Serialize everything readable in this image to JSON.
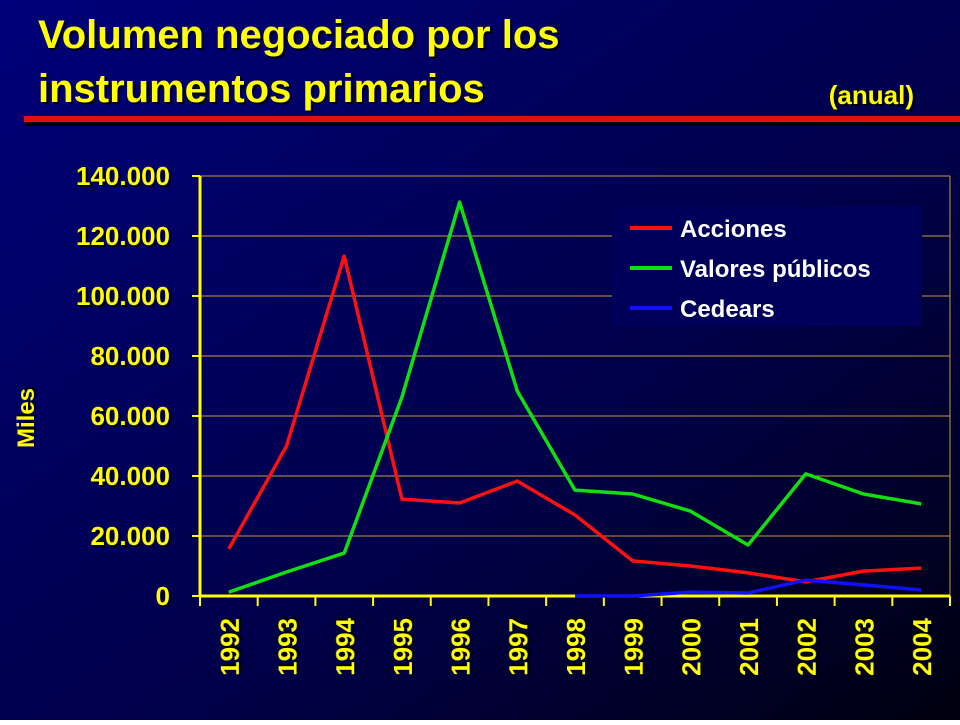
{
  "chart_data": {
    "type": "line",
    "title_lines": [
      "Volumen negociado por los",
      "instrumentos primarios"
    ],
    "subtitle": "(anual)",
    "y_label": "Miles",
    "categories": [
      "1992",
      "1993",
      "1994",
      "1995",
      "1996",
      "1997",
      "1998",
      "1999",
      "2000",
      "2001",
      "2002",
      "2003",
      "2004"
    ],
    "series": [
      {
        "name": "Acciones",
        "color": "#ff1010",
        "values": [
          15700,
          50000,
          113300,
          32300,
          31000,
          38300,
          27000,
          11700,
          10000,
          7700,
          4700,
          8300,
          9300
        ]
      },
      {
        "name": "Valores públicos",
        "color": "#10e010",
        "values": [
          1300,
          8000,
          14300,
          66300,
          131300,
          68300,
          35300,
          34000,
          28300,
          17000,
          40700,
          34000,
          30700
        ]
      },
      {
        "name": "Cedears",
        "color": "#1010ff",
        "values": [
          null,
          null,
          null,
          null,
          null,
          null,
          0,
          0,
          1300,
          1000,
          5300,
          3700,
          2000
        ]
      }
    ],
    "ylim": [
      0,
      140000
    ],
    "yticks": [
      0,
      {
        "value": 20000,
        "label": "20.000"
      },
      {
        "value": 40000,
        "label": "40.000"
      },
      {
        "value": 60000,
        "label": "60.000"
      },
      {
        "value": 80000,
        "label": "80.000"
      },
      {
        "value": 100000,
        "label": "100.000"
      },
      {
        "value": 120000,
        "label": "120.000"
      },
      {
        "value": 140000,
        "label": "140.000"
      }
    ],
    "grid": true,
    "legend": "upper right"
  }
}
